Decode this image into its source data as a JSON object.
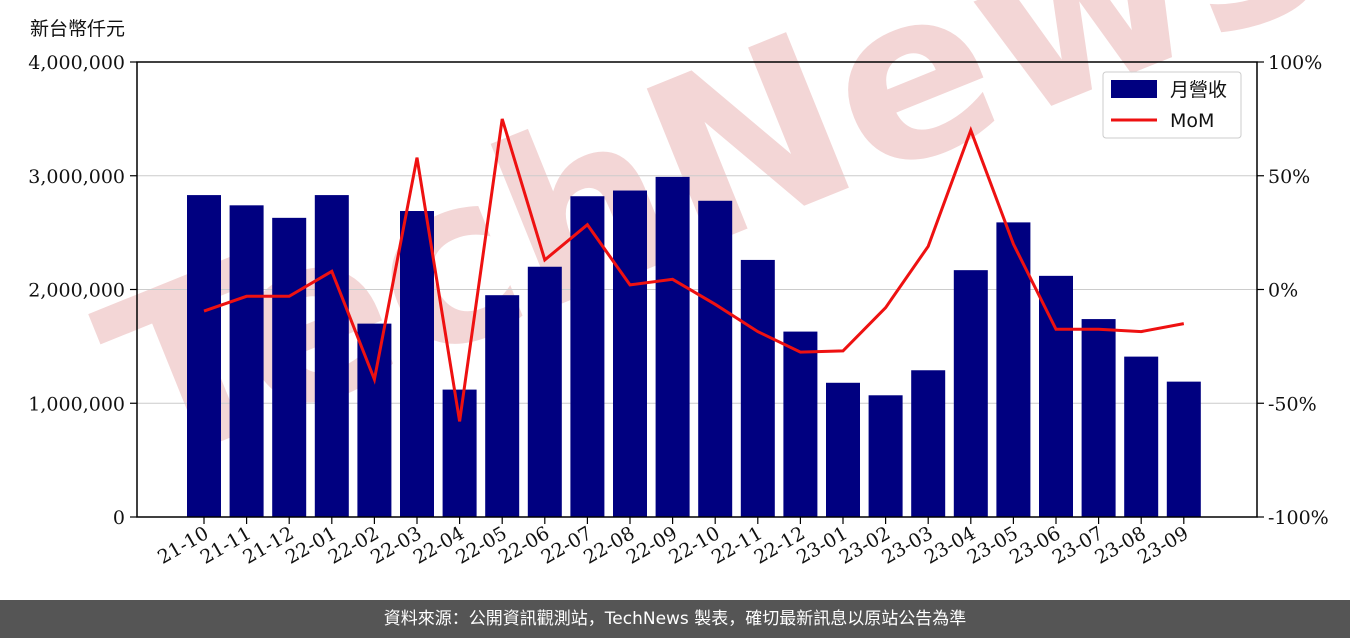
{
  "unit_label": "新台幣仟元",
  "footer_text": "資料來源：公開資訊觀測站，TechNews 製表，確切最新訊息以原站公告為準",
  "watermark_text": "TechNews",
  "colors": {
    "bar": "#000080",
    "line": "#ee1111",
    "footer_bg": "#555555",
    "watermark": "#f3d6d6"
  },
  "chart_data": {
    "type": "bar",
    "categories": [
      "21-10",
      "21-11",
      "21-12",
      "22-01",
      "22-02",
      "22-03",
      "22-04",
      "22-05",
      "22-06",
      "22-07",
      "22-08",
      "22-09",
      "22-10",
      "22-11",
      "22-12",
      "23-01",
      "23-02",
      "23-03",
      "23-04",
      "23-05",
      "23-06",
      "23-07",
      "23-08",
      "23-09"
    ],
    "series": [
      {
        "name": "月營收",
        "type": "bar",
        "axis": "left",
        "values": [
          2830000,
          2740000,
          2630000,
          2830000,
          1700000,
          2690000,
          1120000,
          1950000,
          2200000,
          2820000,
          2870000,
          2990000,
          2780000,
          2260000,
          1630000,
          1180000,
          1070000,
          1290000,
          2170000,
          2590000,
          2120000,
          1740000,
          1410000,
          1190000
        ]
      },
      {
        "name": "MoM",
        "type": "line",
        "axis": "right",
        "values": [
          -9.5,
          -3,
          -3,
          8,
          -39.5,
          58,
          -58,
          75,
          13,
          28.5,
          2,
          4.5,
          -6.5,
          -18.5,
          -27.5,
          -27,
          -8,
          19,
          70,
          20,
          -17.5,
          -17.5,
          -18.5,
          -15
        ]
      }
    ],
    "left_axis": {
      "ticks": [
        "0",
        "1,000,000",
        "2,000,000",
        "3,000,000",
        "4,000,000"
      ],
      "ylim": [
        0,
        4000000
      ]
    },
    "right_axis": {
      "ticks": [
        "-100%",
        "-50%",
        "0%",
        "50%",
        "100%"
      ],
      "ylim": [
        -100,
        100
      ]
    },
    "grid": "horizontal",
    "legend_position": "top-right"
  }
}
